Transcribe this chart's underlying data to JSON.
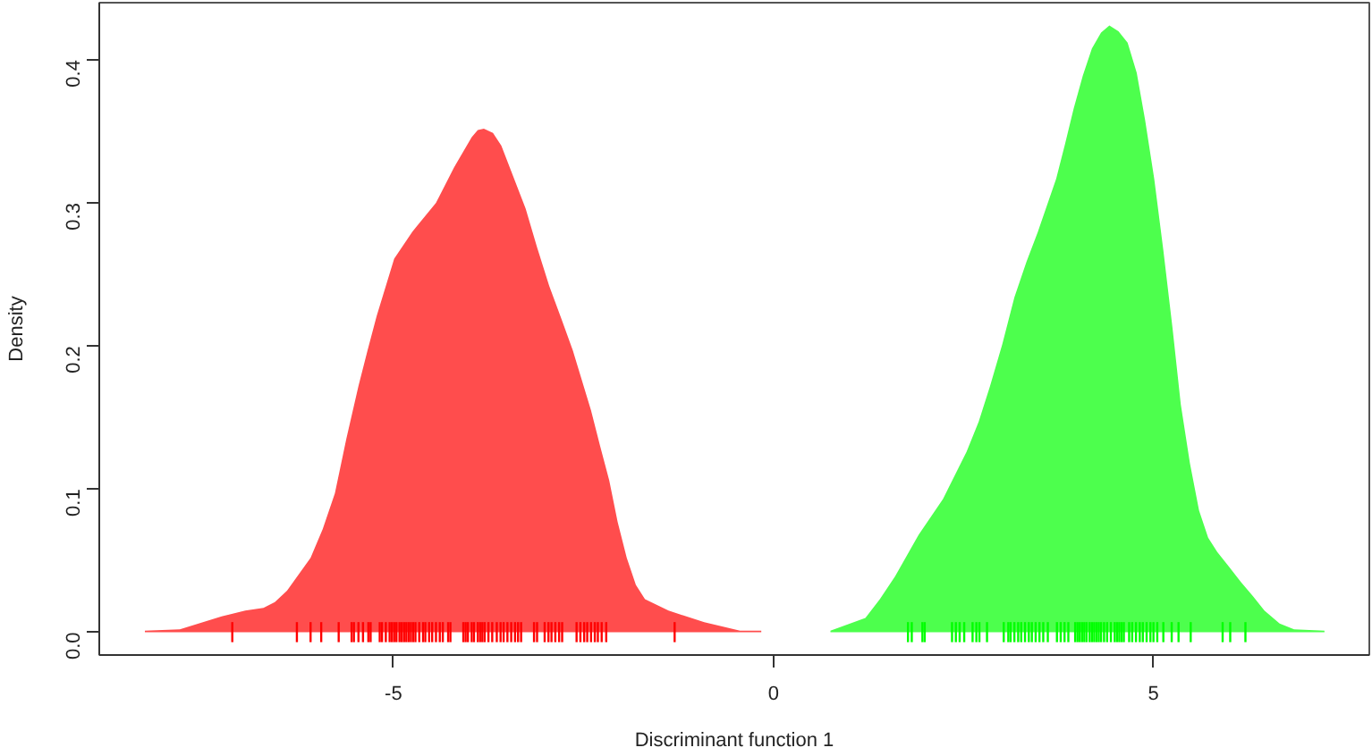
{
  "chart_data": {
    "type": "area",
    "xlabel": "Discriminant function 1",
    "ylabel": "Density",
    "xlim": [
      -8.87,
      7.84
    ],
    "ylim": [
      -0.016,
      0.44
    ],
    "xticks": [
      -5,
      0,
      5
    ],
    "yticks": [
      {
        "value": 0,
        "label": "0.0"
      },
      0.1,
      0.2,
      0.3,
      0.4
    ],
    "series": [
      {
        "color": "#ff4d4d",
        "x": [
          -8.27,
          -7.81,
          -7.26,
          -6.95,
          -6.71,
          -6.56,
          -6.4,
          -6.09,
          -5.93,
          -5.77,
          -5.62,
          -5.46,
          -5.34,
          -5.22,
          -4.99,
          -4.75,
          -4.44,
          -4.2,
          -3.97,
          -3.89,
          -3.81,
          -3.69,
          -3.58,
          -3.26,
          -3.11,
          -2.95,
          -2.79,
          -2.64,
          -2.4,
          -2.28,
          -2.16,
          -2.05,
          -1.93,
          -1.81,
          -1.69,
          -1.38,
          -0.91,
          -0.44,
          -0.16
        ],
        "values": [
          0.001,
          0.002,
          0.011,
          0.015,
          0.017,
          0.021,
          0.029,
          0.052,
          0.072,
          0.097,
          0.135,
          0.172,
          0.197,
          0.221,
          0.261,
          0.28,
          0.3,
          0.325,
          0.346,
          0.351,
          0.352,
          0.349,
          0.34,
          0.296,
          0.269,
          0.242,
          0.219,
          0.197,
          0.155,
          0.13,
          0.106,
          0.077,
          0.052,
          0.033,
          0.023,
          0.015,
          0.007,
          0.001,
          0.001
        ]
      },
      {
        "color": "#4dff4d",
        "x": [
          0.75,
          1.21,
          1.4,
          1.6,
          1.76,
          1.91,
          2.23,
          2.54,
          2.7,
          2.85,
          3.01,
          3.17,
          3.33,
          3.48,
          3.72,
          3.84,
          3.95,
          4.07,
          4.19,
          4.31,
          4.42,
          4.54,
          4.66,
          4.78,
          4.89,
          5.01,
          5.13,
          5.25,
          5.36,
          5.48,
          5.6,
          5.72,
          5.84,
          5.99,
          6.15,
          6.31,
          6.46,
          6.66,
          6.85,
          7.25
        ],
        "values": [
          0.001,
          0.01,
          0.023,
          0.039,
          0.054,
          0.068,
          0.093,
          0.126,
          0.147,
          0.172,
          0.201,
          0.234,
          0.259,
          0.28,
          0.317,
          0.342,
          0.366,
          0.389,
          0.408,
          0.419,
          0.424,
          0.42,
          0.412,
          0.391,
          0.358,
          0.317,
          0.267,
          0.213,
          0.159,
          0.118,
          0.085,
          0.066,
          0.056,
          0.046,
          0.035,
          0.025,
          0.015,
          0.006,
          0.002,
          0.001
        ]
      },
      {
        "type": "bar",
        "color": "#ff0000",
        "x": [
          -7.12,
          -6.27,
          -6.09,
          -5.95,
          -5.72,
          -5.55,
          -5.52,
          -5.46,
          -5.4,
          -5.33,
          -5.3,
          -5.18,
          -5.15,
          -5.1,
          -5.05,
          -5.02,
          -4.99,
          -4.96,
          -4.92,
          -4.89,
          -4.86,
          -4.83,
          -4.8,
          -4.77,
          -4.74,
          -4.71,
          -4.66,
          -4.61,
          -4.58,
          -4.53,
          -4.49,
          -4.44,
          -4.39,
          -4.35,
          -4.28,
          -4.25,
          -4.08,
          -4.05,
          -4.02,
          -3.97,
          -3.94,
          -3.89,
          -3.86,
          -3.83,
          -3.8,
          -3.75,
          -3.7,
          -3.64,
          -3.59,
          -3.55,
          -3.5,
          -3.45,
          -3.4,
          -3.36,
          -3.32,
          -3.15,
          -3.11,
          -3.01,
          -2.96,
          -2.92,
          -2.87,
          -2.82,
          -2.78,
          -2.59,
          -2.54,
          -2.49,
          -2.45,
          -2.4,
          -2.35,
          -2.31,
          -2.26,
          -2.2,
          -1.3
        ],
        "base": [
          -0.007,
          -0.007,
          -0.007,
          -0.007,
          -0.007,
          -0.007,
          -0.007,
          -0.007,
          -0.007,
          -0.007,
          -0.007,
          -0.007,
          -0.007,
          -0.007,
          -0.007,
          -0.007,
          -0.007,
          -0.007,
          -0.007,
          -0.007,
          -0.007,
          -0.007,
          -0.007,
          -0.007,
          -0.007,
          -0.007,
          -0.007,
          -0.007,
          -0.007,
          -0.007,
          -0.007,
          -0.007,
          -0.007,
          -0.007,
          -0.007,
          -0.007,
          -0.007,
          -0.007,
          -0.007,
          -0.007,
          -0.007,
          -0.007,
          -0.007,
          -0.007,
          -0.007,
          -0.007,
          -0.007,
          -0.007,
          -0.007,
          -0.007,
          -0.007,
          -0.007,
          -0.007,
          -0.007,
          -0.007,
          -0.007,
          -0.007,
          -0.007,
          -0.007,
          -0.007,
          -0.007,
          -0.007,
          -0.007,
          -0.007,
          -0.007,
          -0.007,
          -0.007,
          -0.007,
          -0.007,
          -0.007,
          -0.007,
          -0.007,
          -0.007
        ],
        "values": [
          0.014,
          0.014,
          0.014,
          0.014,
          0.014,
          0.014,
          0.014,
          0.014,
          0.014,
          0.014,
          0.014,
          0.014,
          0.014,
          0.014,
          0.014,
          0.014,
          0.014,
          0.014,
          0.014,
          0.014,
          0.014,
          0.014,
          0.014,
          0.014,
          0.014,
          0.014,
          0.014,
          0.014,
          0.014,
          0.014,
          0.014,
          0.014,
          0.014,
          0.014,
          0.014,
          0.014,
          0.014,
          0.014,
          0.014,
          0.014,
          0.014,
          0.014,
          0.014,
          0.014,
          0.014,
          0.014,
          0.014,
          0.014,
          0.014,
          0.014,
          0.014,
          0.014,
          0.014,
          0.014,
          0.014,
          0.014,
          0.014,
          0.014,
          0.014,
          0.014,
          0.014,
          0.014,
          0.014,
          0.014,
          0.014,
          0.014,
          0.014,
          0.014,
          0.014,
          0.014,
          0.014,
          0.014,
          0.014
        ]
      },
      {
        "type": "bar",
        "color": "#00ff00",
        "x": [
          1.77,
          1.82,
          1.96,
          1.99,
          2.35,
          2.4,
          2.45,
          2.51,
          2.62,
          2.67,
          2.71,
          2.81,
          3.03,
          3.09,
          3.12,
          3.17,
          3.22,
          3.26,
          3.31,
          3.36,
          3.4,
          3.45,
          3.5,
          3.55,
          3.61,
          3.73,
          3.78,
          3.83,
          3.88,
          3.97,
          4.0,
          4.03,
          4.06,
          4.09,
          4.12,
          4.16,
          4.19,
          4.22,
          4.25,
          4.28,
          4.31,
          4.35,
          4.39,
          4.44,
          4.49,
          4.52,
          4.55,
          4.58,
          4.61,
          4.68,
          4.72,
          4.77,
          4.82,
          4.86,
          4.91,
          4.96,
          5.0,
          5.05,
          5.13,
          5.24,
          5.33,
          5.49,
          5.91,
          6.01,
          6.21
        ],
        "base": [
          -0.007,
          -0.007,
          -0.007,
          -0.007,
          -0.007,
          -0.007,
          -0.007,
          -0.007,
          -0.007,
          -0.007,
          -0.007,
          -0.007,
          -0.007,
          -0.007,
          -0.007,
          -0.007,
          -0.007,
          -0.007,
          -0.007,
          -0.007,
          -0.007,
          -0.007,
          -0.007,
          -0.007,
          -0.007,
          -0.007,
          -0.007,
          -0.007,
          -0.007,
          -0.007,
          -0.007,
          -0.007,
          -0.007,
          -0.007,
          -0.007,
          -0.007,
          -0.007,
          -0.007,
          -0.007,
          -0.007,
          -0.007,
          -0.007,
          -0.007,
          -0.007,
          -0.007,
          -0.007,
          -0.007,
          -0.007,
          -0.007,
          -0.007,
          -0.007,
          -0.007,
          -0.007,
          -0.007,
          -0.007,
          -0.007,
          -0.007,
          -0.007,
          -0.007,
          -0.007,
          -0.007,
          -0.007,
          -0.007,
          -0.007,
          -0.007
        ],
        "values": [
          0.014,
          0.014,
          0.014,
          0.014,
          0.014,
          0.014,
          0.014,
          0.014,
          0.014,
          0.014,
          0.014,
          0.014,
          0.014,
          0.014,
          0.014,
          0.014,
          0.014,
          0.014,
          0.014,
          0.014,
          0.014,
          0.014,
          0.014,
          0.014,
          0.014,
          0.014,
          0.014,
          0.014,
          0.014,
          0.014,
          0.014,
          0.014,
          0.014,
          0.014,
          0.014,
          0.014,
          0.014,
          0.014,
          0.014,
          0.014,
          0.014,
          0.014,
          0.014,
          0.014,
          0.014,
          0.014,
          0.014,
          0.014,
          0.014,
          0.014,
          0.014,
          0.014,
          0.014,
          0.014,
          0.014,
          0.014,
          0.014,
          0.014,
          0.014,
          0.014,
          0.014,
          0.014,
          0.014,
          0.014,
          0.014
        ]
      }
    ]
  }
}
